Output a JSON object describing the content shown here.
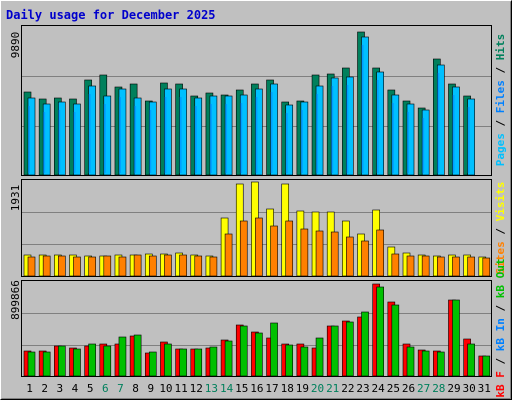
{
  "title": "Daily usage for December 2025",
  "colors": {
    "background": "#c0c0c0",
    "pages": "#00c0ff",
    "files": "#0080ff",
    "hits": "#00805c",
    "visits": "#ffff00",
    "sites": "#ff8000",
    "kb_f": "#ff0000",
    "kb_in": "#0080ff",
    "kb_out": "#00c000",
    "weekday": "#000000",
    "weekend": "#00805c"
  },
  "legend": {
    "top": [
      {
        "text": "Pages",
        "color": "#00c0ff"
      },
      {
        "text": " / ",
        "color": "#000000"
      },
      {
        "text": "Files",
        "color": "#0080ff"
      },
      {
        "text": " / ",
        "color": "#000000"
      },
      {
        "text": "Hits",
        "color": "#00805c"
      }
    ],
    "middle": [
      {
        "text": "Sites",
        "color": "#ff8000"
      },
      {
        "text": " / ",
        "color": "#000000"
      },
      {
        "text": "Visits",
        "color": "#ffff00"
      }
    ],
    "bottom": [
      {
        "text": "kB F",
        "color": "#ff0000"
      },
      {
        "text": " / ",
        "color": "#000000"
      },
      {
        "text": "kB In",
        "color": "#0080ff"
      },
      {
        "text": " / ",
        "color": "#000000"
      },
      {
        "text": "kB Out",
        "color": "#00c000"
      }
    ]
  },
  "chart_data": [
    {
      "type": "bar",
      "panel": "hits-files-pages",
      "ylabel": "9890",
      "ylim": [
        0,
        9890
      ],
      "x": [
        "1",
        "2",
        "3",
        "4",
        "5",
        "6",
        "7",
        "8",
        "9",
        "10",
        "11",
        "12",
        "13",
        "14",
        "15",
        "16",
        "17",
        "18",
        "19",
        "20",
        "21",
        "22",
        "23",
        "24",
        "25",
        "26",
        "27",
        "28",
        "29",
        "30",
        "31"
      ],
      "series": [
        {
          "name": "Hits",
          "color": "#00805c",
          "values": [
            5600,
            5100,
            5200,
            5100,
            6400,
            6700,
            5900,
            6100,
            5000,
            6200,
            6100,
            5300,
            5500,
            5400,
            5700,
            6100,
            6400,
            4900,
            5000,
            6700,
            6800,
            7200,
            9620,
            7200,
            5700,
            5000,
            4500,
            7800,
            6100,
            5300,
            0
          ]
        },
        {
          "name": "Files",
          "color": "#00c0ff",
          "values": [
            5200,
            4800,
            4900,
            4800,
            6000,
            5300,
            5800,
            5200,
            4900,
            5800,
            5800,
            5200,
            5300,
            5300,
            5400,
            5800,
            6100,
            4700,
            4900,
            6000,
            6500,
            6600,
            9300,
            6900,
            5400,
            4800,
            4400,
            7400,
            5900,
            5100,
            0
          ]
        }
      ]
    },
    {
      "type": "bar",
      "panel": "visits-sites",
      "ylabel": "1931",
      "ylim": [
        0,
        1931
      ],
      "x": [
        "1",
        "2",
        "3",
        "4",
        "5",
        "6",
        "7",
        "8",
        "9",
        "10",
        "11",
        "12",
        "13",
        "14",
        "15",
        "16",
        "17",
        "18",
        "19",
        "20",
        "21",
        "22",
        "23",
        "24",
        "25",
        "26",
        "27",
        "28",
        "29",
        "30",
        "31"
      ],
      "series": [
        {
          "name": "Visits",
          "color": "#ffff00",
          "values": [
            430,
            430,
            440,
            430,
            420,
            420,
            440,
            440,
            450,
            460,
            470,
            430,
            420,
            1200,
            1880,
            1940,
            1380,
            1880,
            1330,
            1320,
            1320,
            1140,
            870,
            1360,
            590,
            480,
            440,
            420,
            430,
            430,
            390
          ]
        },
        {
          "name": "Sites",
          "color": "#ff8000",
          "values": [
            400,
            410,
            410,
            390,
            400,
            410,
            400,
            430,
            420,
            430,
            430,
            410,
            400,
            870,
            1120,
            1200,
            1020,
            1120,
            960,
            930,
            900,
            810,
            710,
            940,
            450,
            420,
            410,
            400,
            400,
            400,
            380
          ]
        }
      ]
    },
    {
      "type": "bar",
      "panel": "kbf-kbin-kbout",
      "ylabel": "899866",
      "ylim": [
        0,
        899866
      ],
      "x": [
        "1",
        "2",
        "3",
        "4",
        "5",
        "6",
        "7",
        "8",
        "9",
        "10",
        "11",
        "12",
        "13",
        "14",
        "15",
        "16",
        "17",
        "18",
        "19",
        "20",
        "21",
        "22",
        "23",
        "24",
        "25",
        "26",
        "27",
        "28",
        "29",
        "30",
        "31"
      ],
      "series": [
        {
          "name": "kB F",
          "color": "#ff0000",
          "values": [
            240000,
            245000,
            295000,
            275000,
            295000,
            305000,
            305000,
            390000,
            225000,
            330000,
            265000,
            265000,
            275000,
            350000,
            495000,
            430000,
            365000,
            310000,
            305000,
            275000,
            480000,
            535000,
            575000,
            895000,
            720000,
            305000,
            250000,
            245000,
            735000,
            355000,
            195000
          ]
        },
        {
          "name": "kB Out",
          "color": "#00c000",
          "values": [
            230000,
            230000,
            290000,
            260000,
            305000,
            290000,
            375000,
            395000,
            230000,
            310000,
            260000,
            260000,
            280000,
            340000,
            480000,
            415000,
            510000,
            300000,
            280000,
            365000,
            485000,
            525000,
            615000,
            865000,
            685000,
            285000,
            240000,
            235000,
            735000,
            305000,
            190000
          ]
        }
      ]
    }
  ],
  "day_labels": [
    {
      "text": "1",
      "weekend": false
    },
    {
      "text": "2",
      "weekend": false
    },
    {
      "text": "3",
      "weekend": false
    },
    {
      "text": "4",
      "weekend": false
    },
    {
      "text": "5",
      "weekend": false
    },
    {
      "text": "6",
      "weekend": true
    },
    {
      "text": "7",
      "weekend": true
    },
    {
      "text": "8",
      "weekend": false
    },
    {
      "text": "9",
      "weekend": false
    },
    {
      "text": "10",
      "weekend": false
    },
    {
      "text": "11",
      "weekend": false
    },
    {
      "text": "12",
      "weekend": false
    },
    {
      "text": "13",
      "weekend": true
    },
    {
      "text": "14",
      "weekend": true
    },
    {
      "text": "15",
      "weekend": false
    },
    {
      "text": "16",
      "weekend": false
    },
    {
      "text": "17",
      "weekend": false
    },
    {
      "text": "18",
      "weekend": false
    },
    {
      "text": "19",
      "weekend": false
    },
    {
      "text": "20",
      "weekend": true
    },
    {
      "text": "21",
      "weekend": true
    },
    {
      "text": "22",
      "weekend": false
    },
    {
      "text": "23",
      "weekend": false
    },
    {
      "text": "24",
      "weekend": false
    },
    {
      "text": "25",
      "weekend": false
    },
    {
      "text": "26",
      "weekend": false
    },
    {
      "text": "27",
      "weekend": true
    },
    {
      "text": "28",
      "weekend": true
    },
    {
      "text": "29",
      "weekend": false
    },
    {
      "text": "30",
      "weekend": false
    },
    {
      "text": "31",
      "weekend": false
    }
  ]
}
